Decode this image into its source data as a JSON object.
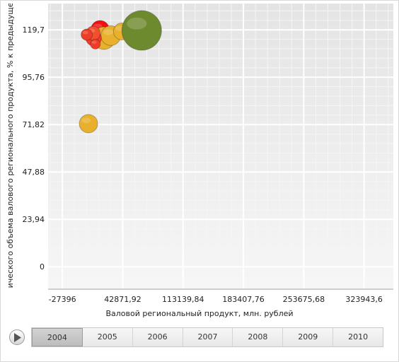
{
  "chart_data": {
    "type": "scatter",
    "xlabel": "Валовой региональный продукт, млн. рублей",
    "ylabel": "Индекс физического объема валового регионального продукта, % к предыдущему периоду",
    "x_ticks": [
      "-27396",
      "42871,92",
      "113139,84",
      "183407,76",
      "253675,68",
      "323943,6"
    ],
    "x_tick_values": [
      -27396,
      42871.92,
      113139.84,
      183407.76,
      253675.68,
      323943.6
    ],
    "y_ticks": [
      "0",
      "23,94",
      "47,88",
      "71,82",
      "95,76",
      "119,7"
    ],
    "y_tick_values": [
      0,
      23.94,
      47.88,
      71.82,
      95.76,
      119.7
    ],
    "xlim": [
      -44000,
      358000
    ],
    "ylim": [
      -11,
      133
    ],
    "grid": true,
    "points": [
      {
        "x": 16500,
        "y": 119.8,
        "size": 13,
        "color": "#f20f0f"
      },
      {
        "x": 21000,
        "y": 115.5,
        "size": 16,
        "color": "#e8b02c"
      },
      {
        "x": 29000,
        "y": 116.8,
        "size": 14,
        "color": "#e8b02c"
      },
      {
        "x": 42000,
        "y": 118.9,
        "size": 12,
        "color": "#e8b02c"
      },
      {
        "x": 9000,
        "y": 115.5,
        "size": 11,
        "color": "#ef3d2a"
      },
      {
        "x": 8500,
        "y": 118.0,
        "size": 10,
        "color": "#f05030"
      },
      {
        "x": 1000,
        "y": 117.3,
        "size": 8,
        "color": "#ef3d2a"
      },
      {
        "x": 11000,
        "y": 112.5,
        "size": 7,
        "color": "#ef3d2a"
      },
      {
        "x": 65000,
        "y": 119.4,
        "size": 28,
        "color": "#6e8a2e"
      },
      {
        "x": 3000,
        "y": 72.3,
        "size": 13,
        "color": "#e8b02c"
      }
    ]
  },
  "timeline": {
    "years": [
      "2004",
      "2005",
      "2006",
      "2007",
      "2008",
      "2009",
      "2010"
    ],
    "selected": "2004"
  }
}
